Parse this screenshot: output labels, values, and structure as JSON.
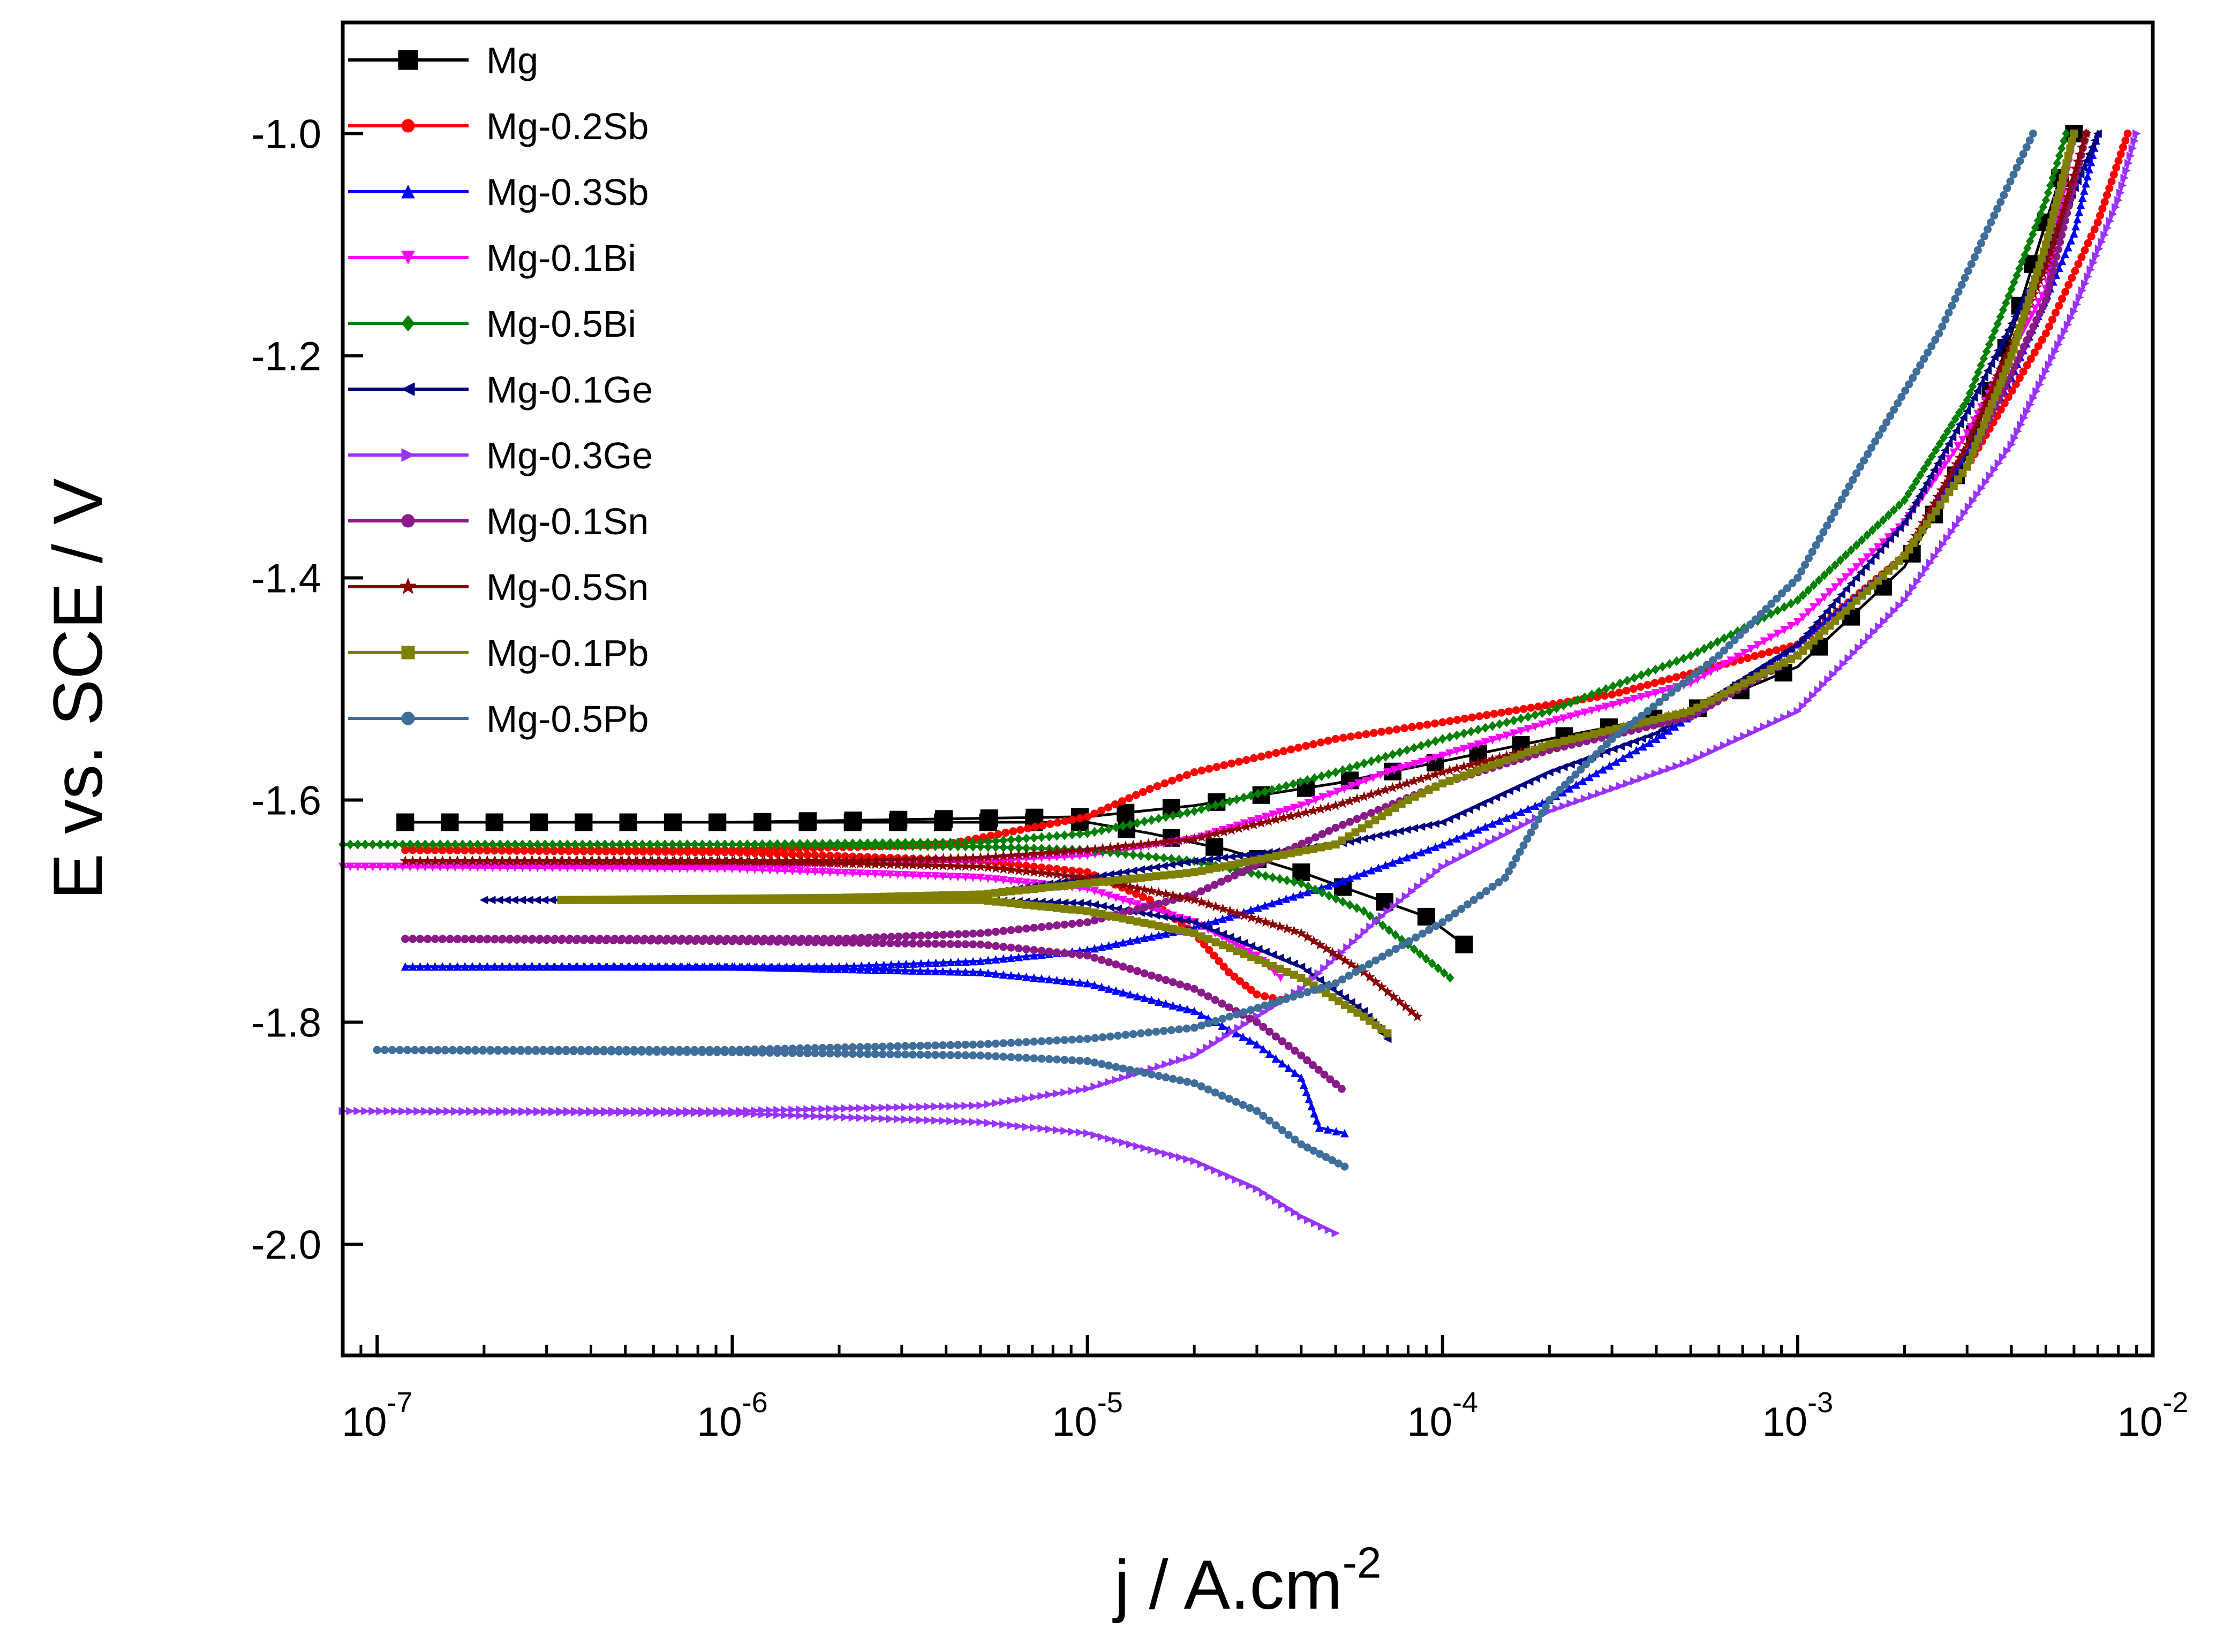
{
  "chart_data": {
    "type": "line",
    "xscale": "log",
    "xlim": [
      8e-08,
      0.01
    ],
    "ylim": [
      -2.1,
      -0.9
    ],
    "xlabel": "j / A.cm",
    "xlabel_sup": "-2",
    "ylabel": "E vs. SCE / V",
    "x_ticks": [
      {
        "value": 1e-07,
        "base": "10",
        "exp": "-7"
      },
      {
        "value": 1e-06,
        "base": "10",
        "exp": "-6"
      },
      {
        "value": 1e-05,
        "base": "10",
        "exp": "-5"
      },
      {
        "value": 0.0001,
        "base": "10",
        "exp": "-4"
      },
      {
        "value": 0.001,
        "base": "10",
        "exp": "-3"
      },
      {
        "value": 0.01,
        "base": "10",
        "exp": "-2"
      }
    ],
    "y_ticks": [
      {
        "value": -1.0,
        "label": "-1.0"
      },
      {
        "value": -1.2,
        "label": "-1.2"
      },
      {
        "value": -1.4,
        "label": "-1.4"
      },
      {
        "value": -1.6,
        "label": "-1.6"
      },
      {
        "value": -1.8,
        "label": "-1.8"
      },
      {
        "value": -2.0,
        "label": "-2.0"
      }
    ],
    "legend_position": "top-left",
    "series": [
      {
        "name": "Mg",
        "color": "#000000",
        "marker": "square",
        "cathodic": [
          [
            1.2e-07,
            -1.62
          ],
          [
            1e-06,
            -1.62
          ],
          [
            5e-06,
            -1.62
          ],
          [
            1e-05,
            -1.62
          ],
          [
            1.5e-05,
            -1.63
          ],
          [
            2.5e-05,
            -1.645
          ],
          [
            4e-05,
            -1.665
          ],
          [
            6e-05,
            -1.685
          ],
          [
            9e-05,
            -1.705
          ],
          [
            0.000115,
            -1.73
          ]
        ],
        "anodic": [
          [
            1.2e-07,
            -1.62
          ],
          [
            1e-06,
            -1.62
          ],
          [
            1e-05,
            -1.615
          ],
          [
            2e-05,
            -1.605
          ],
          [
            5e-05,
            -1.585
          ],
          [
            0.0001,
            -1.565
          ],
          [
            0.0002,
            -1.545
          ],
          [
            0.0005,
            -1.52
          ],
          [
            0.001,
            -1.48
          ],
          [
            0.002,
            -1.39
          ],
          [
            0.003,
            -1.29
          ],
          [
            0.004,
            -1.18
          ],
          [
            0.005,
            -1.08
          ],
          [
            0.006,
            -1.0
          ]
        ]
      },
      {
        "name": "Mg-0.2Sb",
        "color": "#ff0000",
        "marker": "circle",
        "cathodic": [
          [
            1.2e-07,
            -1.645
          ],
          [
            1e-06,
            -1.647
          ],
          [
            5e-06,
            -1.655
          ],
          [
            1e-05,
            -1.665
          ],
          [
            1.5e-05,
            -1.69
          ],
          [
            2e-05,
            -1.72
          ],
          [
            2.5e-05,
            -1.755
          ],
          [
            3e-05,
            -1.775
          ],
          [
            3.5e-05,
            -1.78
          ]
        ],
        "anodic": [
          [
            1.2e-07,
            -1.645
          ],
          [
            1e-06,
            -1.645
          ],
          [
            4e-06,
            -1.64
          ],
          [
            1e-05,
            -1.615
          ],
          [
            1.5e-05,
            -1.59
          ],
          [
            2e-05,
            -1.575
          ],
          [
            5e-05,
            -1.545
          ],
          [
            0.0001,
            -1.53
          ],
          [
            0.0003,
            -1.505
          ],
          [
            0.001,
            -1.46
          ],
          [
            0.002,
            -1.38
          ],
          [
            0.003,
            -1.3
          ],
          [
            0.005,
            -1.18
          ],
          [
            0.007,
            -1.08
          ],
          [
            0.0085,
            -1.0
          ]
        ]
      },
      {
        "name": "Mg-0.3Sb",
        "color": "#0000ff",
        "marker": "triangle-up",
        "cathodic": [
          [
            1.2e-07,
            -1.75
          ],
          [
            1e-06,
            -1.75
          ],
          [
            5e-06,
            -1.755
          ],
          [
            1e-05,
            -1.765
          ],
          [
            2e-05,
            -1.79
          ],
          [
            3e-05,
            -1.82
          ],
          [
            4e-05,
            -1.85
          ],
          [
            4.5e-05,
            -1.895
          ],
          [
            5.3e-05,
            -1.9
          ]
        ],
        "anodic": [
          [
            1.2e-07,
            -1.75
          ],
          [
            2e-06,
            -1.75
          ],
          [
            5e-06,
            -1.745
          ],
          [
            1e-05,
            -1.735
          ],
          [
            2e-05,
            -1.715
          ],
          [
            5e-05,
            -1.675
          ],
          [
            0.0001,
            -1.64
          ],
          [
            0.0002,
            -1.6
          ],
          [
            0.0004,
            -1.545
          ],
          [
            0.001,
            -1.46
          ],
          [
            0.002,
            -1.38
          ],
          [
            0.004,
            -1.22
          ],
          [
            0.006,
            -1.09
          ],
          [
            0.007,
            -1.0
          ]
        ]
      },
      {
        "name": "Mg-0.1Bi",
        "color": "#ff00ff",
        "marker": "triangle-down",
        "cathodic": [
          [
            8e-08,
            -1.66
          ],
          [
            1e-06,
            -1.662
          ],
          [
            5e-06,
            -1.67
          ],
          [
            1e-05,
            -1.68
          ],
          [
            2e-05,
            -1.71
          ],
          [
            3e-05,
            -1.74
          ],
          [
            3.5e-05,
            -1.76
          ]
        ],
        "anodic": [
          [
            8e-08,
            -1.66
          ],
          [
            1e-06,
            -1.66
          ],
          [
            5e-06,
            -1.655
          ],
          [
            1e-05,
            -1.65
          ],
          [
            2e-05,
            -1.635
          ],
          [
            4e-05,
            -1.605
          ],
          [
            7e-05,
            -1.575
          ],
          [
            0.0001,
            -1.56
          ],
          [
            0.0002,
            -1.53
          ],
          [
            0.0005,
            -1.495
          ],
          [
            0.001,
            -1.44
          ],
          [
            0.002,
            -1.35
          ],
          [
            0.003,
            -1.27
          ],
          [
            0.005,
            -1.14
          ],
          [
            0.006,
            -1.0
          ]
        ]
      },
      {
        "name": "Mg-0.5Bi",
        "color": "#008000",
        "marker": "diamond",
        "cathodic": [
          [
            8e-08,
            -1.64
          ],
          [
            1e-06,
            -1.64
          ],
          [
            5e-06,
            -1.642
          ],
          [
            1e-05,
            -1.645
          ],
          [
            2e-05,
            -1.655
          ],
          [
            4e-05,
            -1.675
          ],
          [
            6e-05,
            -1.7
          ],
          [
            8e-05,
            -1.73
          ],
          [
            0.000105,
            -1.76
          ]
        ],
        "anodic": [
          [
            8e-08,
            -1.64
          ],
          [
            1e-06,
            -1.64
          ],
          [
            5e-06,
            -1.638
          ],
          [
            1e-05,
            -1.63
          ],
          [
            2e-05,
            -1.61
          ],
          [
            5e-05,
            -1.575
          ],
          [
            0.0001,
            -1.545
          ],
          [
            0.0002,
            -1.52
          ],
          [
            0.0005,
            -1.47
          ],
          [
            0.001,
            -1.42
          ],
          [
            0.002,
            -1.33
          ],
          [
            0.003,
            -1.24
          ],
          [
            0.004,
            -1.14
          ],
          [
            0.005,
            -1.06
          ],
          [
            0.0057,
            -1.0
          ]
        ]
      },
      {
        "name": "Mg-0.1Ge",
        "color": "#000080",
        "marker": "triangle-left",
        "cathodic": [
          [
            2e-07,
            -1.69
          ],
          [
            1e-06,
            -1.69
          ],
          [
            5e-06,
            -1.69
          ],
          [
            1e-05,
            -1.693
          ],
          [
            2e-05,
            -1.71
          ],
          [
            4e-05,
            -1.75
          ],
          [
            6e-05,
            -1.79
          ],
          [
            7e-05,
            -1.815
          ]
        ],
        "anodic": [
          [
            2e-07,
            -1.69
          ],
          [
            2e-06,
            -1.69
          ],
          [
            5e-06,
            -1.685
          ],
          [
            1e-05,
            -1.67
          ],
          [
            2e-05,
            -1.655
          ],
          [
            5e-05,
            -1.64
          ],
          [
            0.0001,
            -1.62
          ],
          [
            0.0002,
            -1.575
          ],
          [
            0.0004,
            -1.54
          ],
          [
            0.001,
            -1.46
          ],
          [
            0.002,
            -1.35
          ],
          [
            0.003,
            -1.25
          ],
          [
            0.005,
            -1.11
          ],
          [
            0.007,
            -1.0
          ]
        ]
      },
      {
        "name": "Mg-0.3Ge",
        "color": "#9932ff",
        "marker": "triangle-right",
        "cathodic": [
          [
            8e-08,
            -1.88
          ],
          [
            1e-06,
            -1.882
          ],
          [
            5e-06,
            -1.89
          ],
          [
            1e-05,
            -1.9
          ],
          [
            2e-05,
            -1.925
          ],
          [
            3e-05,
            -1.95
          ],
          [
            4e-05,
            -1.975
          ],
          [
            5e-05,
            -1.99
          ]
        ],
        "anodic": [
          [
            8e-08,
            -1.88
          ],
          [
            1e-06,
            -1.88
          ],
          [
            5e-06,
            -1.875
          ],
          [
            1e-05,
            -1.86
          ],
          [
            2e-05,
            -1.83
          ],
          [
            4e-05,
            -1.77
          ],
          [
            7e-05,
            -1.7
          ],
          [
            0.0001,
            -1.66
          ],
          [
            0.0002,
            -1.61
          ],
          [
            0.0005,
            -1.565
          ],
          [
            0.001,
            -1.52
          ],
          [
            0.002,
            -1.42
          ],
          [
            0.004,
            -1.28
          ],
          [
            0.006,
            -1.16
          ],
          [
            0.008,
            -1.06
          ],
          [
            0.009,
            -1.0
          ]
        ]
      },
      {
        "name": "Mg-0.1Sn",
        "color": "#8b1a89",
        "marker": "circle",
        "cathodic": [
          [
            1.2e-07,
            -1.725
          ],
          [
            1e-06,
            -1.727
          ],
          [
            5e-06,
            -1.73
          ],
          [
            1e-05,
            -1.74
          ],
          [
            2e-05,
            -1.77
          ],
          [
            3e-05,
            -1.8
          ],
          [
            4e-05,
            -1.83
          ],
          [
            5.2e-05,
            -1.86
          ]
        ],
        "anodic": [
          [
            1.2e-07,
            -1.725
          ],
          [
            2e-06,
            -1.725
          ],
          [
            5e-06,
            -1.72
          ],
          [
            1e-05,
            -1.71
          ],
          [
            2e-05,
            -1.685
          ],
          [
            5e-05,
            -1.625
          ],
          [
            0.0001,
            -1.585
          ],
          [
            0.0002,
            -1.555
          ],
          [
            0.0005,
            -1.525
          ],
          [
            0.001,
            -1.47
          ],
          [
            0.002,
            -1.38
          ],
          [
            0.003,
            -1.3
          ],
          [
            0.005,
            -1.15
          ],
          [
            0.0065,
            -1.0
          ]
        ]
      },
      {
        "name": "Mg-0.5Sn",
        "color": "#8b0000",
        "marker": "star",
        "cathodic": [
          [
            1.2e-07,
            -1.655
          ],
          [
            1e-06,
            -1.655
          ],
          [
            5e-06,
            -1.66
          ],
          [
            1e-05,
            -1.67
          ],
          [
            2e-05,
            -1.69
          ],
          [
            4e-05,
            -1.72
          ],
          [
            6e-05,
            -1.755
          ],
          [
            8.5e-05,
            -1.795
          ]
        ],
        "anodic": [
          [
            1.2e-07,
            -1.655
          ],
          [
            2e-06,
            -1.655
          ],
          [
            5e-06,
            -1.652
          ],
          [
            1e-05,
            -1.645
          ],
          [
            2e-05,
            -1.635
          ],
          [
            5e-05,
            -1.605
          ],
          [
            0.0001,
            -1.575
          ],
          [
            0.0002,
            -1.55
          ],
          [
            0.0005,
            -1.52
          ],
          [
            0.001,
            -1.47
          ],
          [
            0.002,
            -1.38
          ],
          [
            0.003,
            -1.28
          ],
          [
            0.005,
            -1.12
          ],
          [
            0.0065,
            -1.0
          ]
        ]
      },
      {
        "name": "Mg-0.1Pb",
        "color": "#808000",
        "marker": "square",
        "cathodic": [
          [
            3.3e-07,
            -1.69
          ],
          [
            1e-06,
            -1.69
          ],
          [
            5e-06,
            -1.69
          ],
          [
            1e-05,
            -1.7
          ],
          [
            2e-05,
            -1.72
          ],
          [
            4e-05,
            -1.76
          ],
          [
            6e-05,
            -1.795
          ],
          [
            7e-05,
            -1.81
          ]
        ],
        "anodic": [
          [
            3.3e-07,
            -1.69
          ],
          [
            2e-06,
            -1.688
          ],
          [
            5e-06,
            -1.685
          ],
          [
            1e-05,
            -1.675
          ],
          [
            2e-05,
            -1.665
          ],
          [
            5e-05,
            -1.64
          ],
          [
            8e-05,
            -1.6
          ],
          [
            0.0001,
            -1.585
          ],
          [
            0.0002,
            -1.55
          ],
          [
            0.0005,
            -1.52
          ],
          [
            0.001,
            -1.47
          ],
          [
            0.002,
            -1.38
          ],
          [
            0.003,
            -1.3
          ],
          [
            0.004,
            -1.2
          ],
          [
            0.005,
            -1.1
          ],
          [
            0.006,
            -1.0
          ]
        ]
      },
      {
        "name": "Mg-0.5Pb",
        "color": "#3f6e9a",
        "marker": "circle",
        "cathodic": [
          [
            1e-07,
            -1.825
          ],
          [
            1e-06,
            -1.827
          ],
          [
            5e-06,
            -1.83
          ],
          [
            1e-05,
            -1.835
          ],
          [
            2e-05,
            -1.855
          ],
          [
            3e-05,
            -1.88
          ],
          [
            4e-05,
            -1.91
          ],
          [
            5.3e-05,
            -1.93
          ]
        ],
        "anodic": [
          [
            1e-07,
            -1.825
          ],
          [
            1e-06,
            -1.825
          ],
          [
            5e-06,
            -1.82
          ],
          [
            1e-05,
            -1.815
          ],
          [
            2e-05,
            -1.805
          ],
          [
            5e-05,
            -1.765
          ],
          [
            0.0001,
            -1.71
          ],
          [
            0.00015,
            -1.67
          ],
          [
            0.0002,
            -1.6
          ],
          [
            0.0003,
            -1.545
          ],
          [
            0.0006,
            -1.47
          ],
          [
            0.001,
            -1.4
          ],
          [
            0.0015,
            -1.3
          ],
          [
            0.0025,
            -1.18
          ],
          [
            0.0035,
            -1.08
          ],
          [
            0.0046,
            -1.0
          ]
        ]
      }
    ]
  }
}
